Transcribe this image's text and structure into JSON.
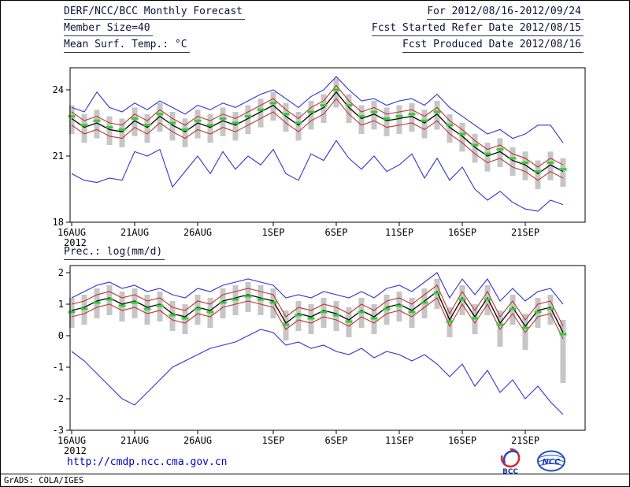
{
  "header": {
    "left_lines": [
      "DERF/NCC/BCC Monthly Forecast",
      "Member Size=40"
    ],
    "right_lines": [
      "For 2012/08/16-2012/09/24",
      "Fcst Started Refer Date 2012/08/15",
      "Fcst Produced Date 2012/08/16"
    ]
  },
  "footer": {
    "url": "http://cmdp.ncc.cma.gov.cn",
    "grads_credit": "GrADS: COLA/IGES",
    "logos": [
      "BCC",
      "NCC"
    ]
  },
  "colors": {
    "envelope_line": "#3333cc",
    "spread_line": "#c03434",
    "mean_line": "#101010",
    "median_dash": "#35cc35",
    "bar_gray": "#c6c6c6",
    "text_navy": "#10103a",
    "url_blue": "#0000cc"
  },
  "chart_data": [
    {
      "type": "line",
      "title": "Mean Surf. Temp.: °C",
      "n_points": 40,
      "x_tick_labels": [
        "16AUG",
        "21AUG",
        "26AUG",
        "1SEP",
        "6SEP",
        "11SEP",
        "16SEP",
        "21SEP"
      ],
      "x_tick_indices": [
        0,
        5,
        10,
        16,
        21,
        26,
        31,
        36
      ],
      "year_label": "2012",
      "ylim": [
        18,
        25.0
      ],
      "yticks": [
        18,
        21,
        24
      ],
      "grid": false,
      "legend": "none",
      "series": [
        {
          "name": "ensemble-max",
          "color": "#3333cc",
          "values": [
            23.2,
            23.0,
            23.9,
            23.2,
            23.0,
            23.4,
            23.1,
            23.5,
            23.2,
            22.9,
            23.3,
            23.1,
            23.4,
            23.2,
            23.5,
            23.8,
            24.0,
            23.6,
            23.2,
            23.7,
            24.0,
            24.6,
            24.0,
            23.5,
            23.6,
            23.3,
            23.5,
            23.6,
            23.3,
            23.8,
            23.2,
            22.8,
            22.4,
            22.0,
            22.2,
            21.8,
            22.0,
            22.4,
            22.4,
            21.6
          ]
        },
        {
          "name": "upper-spread",
          "color": "#c03434",
          "values": [
            23.0,
            22.6,
            22.8,
            22.5,
            22.4,
            22.9,
            22.6,
            23.1,
            22.7,
            22.4,
            22.8,
            22.6,
            22.9,
            22.7,
            23.0,
            23.3,
            23.6,
            23.1,
            22.7,
            23.2,
            23.5,
            24.2,
            23.5,
            23.0,
            23.2,
            22.9,
            23.0,
            23.1,
            22.8,
            23.2,
            22.6,
            22.2,
            21.7,
            21.3,
            21.5,
            21.1,
            20.9,
            20.5,
            20.9,
            20.6
          ]
        },
        {
          "name": "lower-spread",
          "color": "#c03434",
          "values": [
            22.4,
            22.0,
            22.2,
            21.9,
            21.8,
            22.3,
            22.0,
            22.5,
            22.1,
            21.8,
            22.2,
            22.0,
            22.3,
            22.1,
            22.4,
            22.7,
            23.0,
            22.5,
            22.1,
            22.6,
            22.9,
            23.6,
            22.9,
            22.4,
            22.6,
            22.3,
            22.4,
            22.5,
            22.2,
            22.6,
            22.0,
            21.6,
            21.1,
            20.7,
            20.9,
            20.5,
            20.3,
            19.9,
            20.3,
            20.0
          ]
        },
        {
          "name": "ensemble-min",
          "color": "#3333cc",
          "values": [
            20.2,
            19.9,
            19.8,
            20.0,
            19.9,
            21.2,
            21.0,
            21.3,
            19.6,
            20.3,
            21.0,
            20.2,
            21.2,
            20.4,
            21.0,
            20.6,
            21.3,
            20.2,
            19.9,
            21.1,
            20.8,
            21.7,
            20.9,
            20.4,
            21.0,
            20.3,
            20.6,
            21.1,
            20.0,
            20.9,
            19.9,
            20.5,
            19.5,
            19.0,
            19.4,
            18.9,
            18.6,
            18.5,
            19.0,
            18.8
          ]
        },
        {
          "name": "ensemble-mean",
          "color": "#101010",
          "values": [
            22.7,
            22.3,
            22.5,
            22.2,
            22.1,
            22.6,
            22.3,
            22.8,
            22.4,
            22.1,
            22.5,
            22.3,
            22.6,
            22.4,
            22.7,
            23.0,
            23.3,
            22.8,
            22.4,
            22.9,
            23.2,
            23.9,
            23.2,
            22.7,
            22.9,
            22.6,
            22.7,
            22.8,
            22.5,
            22.9,
            22.3,
            21.9,
            21.4,
            21.0,
            21.2,
            20.8,
            20.6,
            20.2,
            20.6,
            20.3
          ]
        }
      ],
      "bars": {
        "color": "#c6c6c6",
        "high": [
          23.3,
          22.9,
          23.1,
          22.8,
          22.7,
          23.2,
          22.9,
          23.4,
          23.0,
          22.7,
          23.1,
          22.9,
          23.2,
          23.0,
          23.3,
          23.6,
          23.9,
          23.4,
          23.0,
          23.5,
          23.8,
          24.5,
          23.8,
          23.3,
          23.5,
          23.2,
          23.3,
          23.4,
          23.1,
          23.5,
          22.9,
          22.5,
          22.0,
          21.6,
          21.8,
          21.4,
          21.2,
          20.8,
          21.2,
          20.9
        ],
        "low": [
          22.0,
          21.6,
          21.8,
          21.5,
          21.4,
          21.9,
          21.6,
          22.1,
          21.7,
          21.4,
          21.8,
          21.6,
          21.9,
          21.7,
          22.0,
          22.3,
          22.6,
          22.1,
          21.7,
          22.2,
          22.5,
          23.2,
          22.5,
          22.0,
          22.2,
          21.9,
          22.0,
          22.1,
          21.8,
          22.2,
          21.6,
          21.2,
          20.7,
          20.3,
          20.5,
          20.1,
          19.9,
          19.5,
          19.9,
          19.6
        ]
      },
      "median_dashes": {
        "color": "#35cc35",
        "values": [
          22.8,
          22.4,
          22.6,
          22.3,
          22.2,
          22.7,
          22.4,
          22.9,
          22.5,
          22.2,
          22.6,
          22.4,
          22.7,
          22.5,
          22.8,
          23.1,
          23.4,
          22.9,
          22.5,
          23.0,
          23.3,
          24.0,
          23.3,
          22.8,
          23.0,
          22.7,
          22.8,
          22.9,
          22.6,
          23.0,
          22.4,
          22.0,
          21.5,
          21.1,
          21.3,
          20.9,
          20.7,
          20.3,
          20.7,
          20.4
        ]
      }
    },
    {
      "type": "line",
      "title": "Prec.: log(mm/d)",
      "n_points": 40,
      "x_tick_labels": [
        "16AUG",
        "21AUG",
        "26AUG",
        "1SEP",
        "6SEP",
        "11SEP",
        "16SEP",
        "21SEP"
      ],
      "x_tick_indices": [
        0,
        5,
        10,
        16,
        21,
        26,
        31,
        36
      ],
      "year_label": "2012",
      "ylim": [
        -3,
        2.225
      ],
      "yticks": [
        -3,
        -2,
        -1,
        0,
        1,
        2
      ],
      "grid": false,
      "legend": "none",
      "series": [
        {
          "name": "ensemble-max",
          "color": "#3333cc",
          "values": [
            1.2,
            1.4,
            1.6,
            1.7,
            1.5,
            1.6,
            1.4,
            1.5,
            1.3,
            1.2,
            1.5,
            1.4,
            1.6,
            1.7,
            1.8,
            1.7,
            1.6,
            1.2,
            1.3,
            1.2,
            1.4,
            1.3,
            1.2,
            1.4,
            1.2,
            1.5,
            1.6,
            1.4,
            1.7,
            2.0,
            1.2,
            1.8,
            1.3,
            1.8,
            1.1,
            1.5,
            1.1,
            1.4,
            1.5,
            1.0
          ]
        },
        {
          "name": "upper-spread",
          "color": "#c03434",
          "values": [
            1.0,
            1.1,
            1.3,
            1.4,
            1.2,
            1.3,
            1.1,
            1.2,
            0.9,
            0.8,
            1.1,
            1.0,
            1.3,
            1.4,
            1.5,
            1.4,
            1.3,
            0.6,
            0.9,
            0.8,
            1.0,
            0.9,
            0.7,
            1.0,
            0.8,
            1.1,
            1.2,
            1.0,
            1.3,
            1.6,
            0.7,
            1.4,
            0.8,
            1.4,
            0.6,
            1.1,
            0.5,
            1.0,
            1.1,
            0.3
          ]
        },
        {
          "name": "lower-spread",
          "color": "#c03434",
          "values": [
            0.6,
            0.7,
            0.9,
            1.0,
            0.8,
            0.9,
            0.7,
            0.8,
            0.5,
            0.4,
            0.7,
            0.6,
            0.9,
            1.0,
            1.1,
            1.0,
            0.9,
            0.2,
            0.5,
            0.4,
            0.6,
            0.5,
            0.3,
            0.6,
            0.4,
            0.7,
            0.8,
            0.6,
            0.9,
            1.2,
            0.3,
            1.0,
            0.4,
            1.0,
            0.2,
            0.7,
            0.1,
            0.6,
            0.7,
            -0.1
          ]
        },
        {
          "name": "ensemble-min",
          "color": "#3333cc",
          "values": [
            -0.5,
            -0.8,
            -1.2,
            -1.6,
            -2.0,
            -2.2,
            -1.8,
            -1.4,
            -1.0,
            -0.8,
            -0.6,
            -0.4,
            -0.3,
            -0.2,
            0.0,
            0.2,
            0.1,
            -0.3,
            -0.2,
            -0.4,
            -0.3,
            -0.5,
            -0.6,
            -0.4,
            -0.7,
            -0.5,
            -0.6,
            -0.8,
            -0.6,
            -0.9,
            -1.3,
            -0.9,
            -1.6,
            -1.1,
            -1.8,
            -1.4,
            -2.0,
            -1.6,
            -2.1,
            -2.5
          ]
        },
        {
          "name": "ensemble-mean",
          "color": "#101010",
          "values": [
            0.8,
            0.9,
            1.1,
            1.2,
            1.0,
            1.1,
            0.9,
            1.0,
            0.7,
            0.6,
            0.9,
            0.8,
            1.1,
            1.2,
            1.3,
            1.2,
            1.1,
            0.4,
            0.7,
            0.6,
            0.8,
            0.7,
            0.5,
            0.8,
            0.6,
            0.9,
            1.0,
            0.8,
            1.1,
            1.4,
            0.5,
            1.2,
            0.6,
            1.2,
            0.4,
            0.9,
            0.3,
            0.8,
            0.9,
            0.1
          ]
        }
      ],
      "bars": {
        "color": "#c6c6c6",
        "high": [
          1.2,
          1.3,
          1.5,
          1.6,
          1.4,
          1.5,
          1.3,
          1.4,
          1.1,
          1.0,
          1.3,
          1.2,
          1.5,
          1.6,
          1.7,
          1.6,
          1.5,
          0.8,
          1.1,
          1.0,
          1.2,
          1.1,
          0.9,
          1.2,
          1.0,
          1.3,
          1.4,
          1.2,
          1.5,
          1.8,
          0.9,
          1.6,
          1.0,
          1.6,
          0.8,
          1.3,
          0.7,
          1.2,
          1.3,
          0.5
        ],
        "low": [
          0.25,
          0.35,
          0.55,
          0.65,
          0.45,
          0.55,
          0.35,
          0.45,
          0.15,
          0.05,
          0.35,
          0.25,
          0.55,
          0.65,
          0.75,
          0.65,
          0.55,
          -0.15,
          0.15,
          0.05,
          0.25,
          0.15,
          -0.05,
          0.25,
          0.05,
          0.35,
          0.45,
          0.25,
          0.55,
          0.85,
          -0.05,
          0.65,
          0.05,
          0.65,
          -0.35,
          0.35,
          -0.45,
          0.25,
          0.35,
          -1.5
        ]
      },
      "median_dashes": {
        "color": "#35cc35",
        "values": [
          0.75,
          0.85,
          1.05,
          1.15,
          0.95,
          1.05,
          0.85,
          0.95,
          0.65,
          0.55,
          0.85,
          0.75,
          1.05,
          1.15,
          1.25,
          1.15,
          1.05,
          0.35,
          0.65,
          0.55,
          0.75,
          0.65,
          0.45,
          0.75,
          0.55,
          0.85,
          0.95,
          0.75,
          1.05,
          1.35,
          0.45,
          1.15,
          0.55,
          1.15,
          0.35,
          0.85,
          0.25,
          0.75,
          0.85,
          0.05
        ]
      }
    }
  ]
}
